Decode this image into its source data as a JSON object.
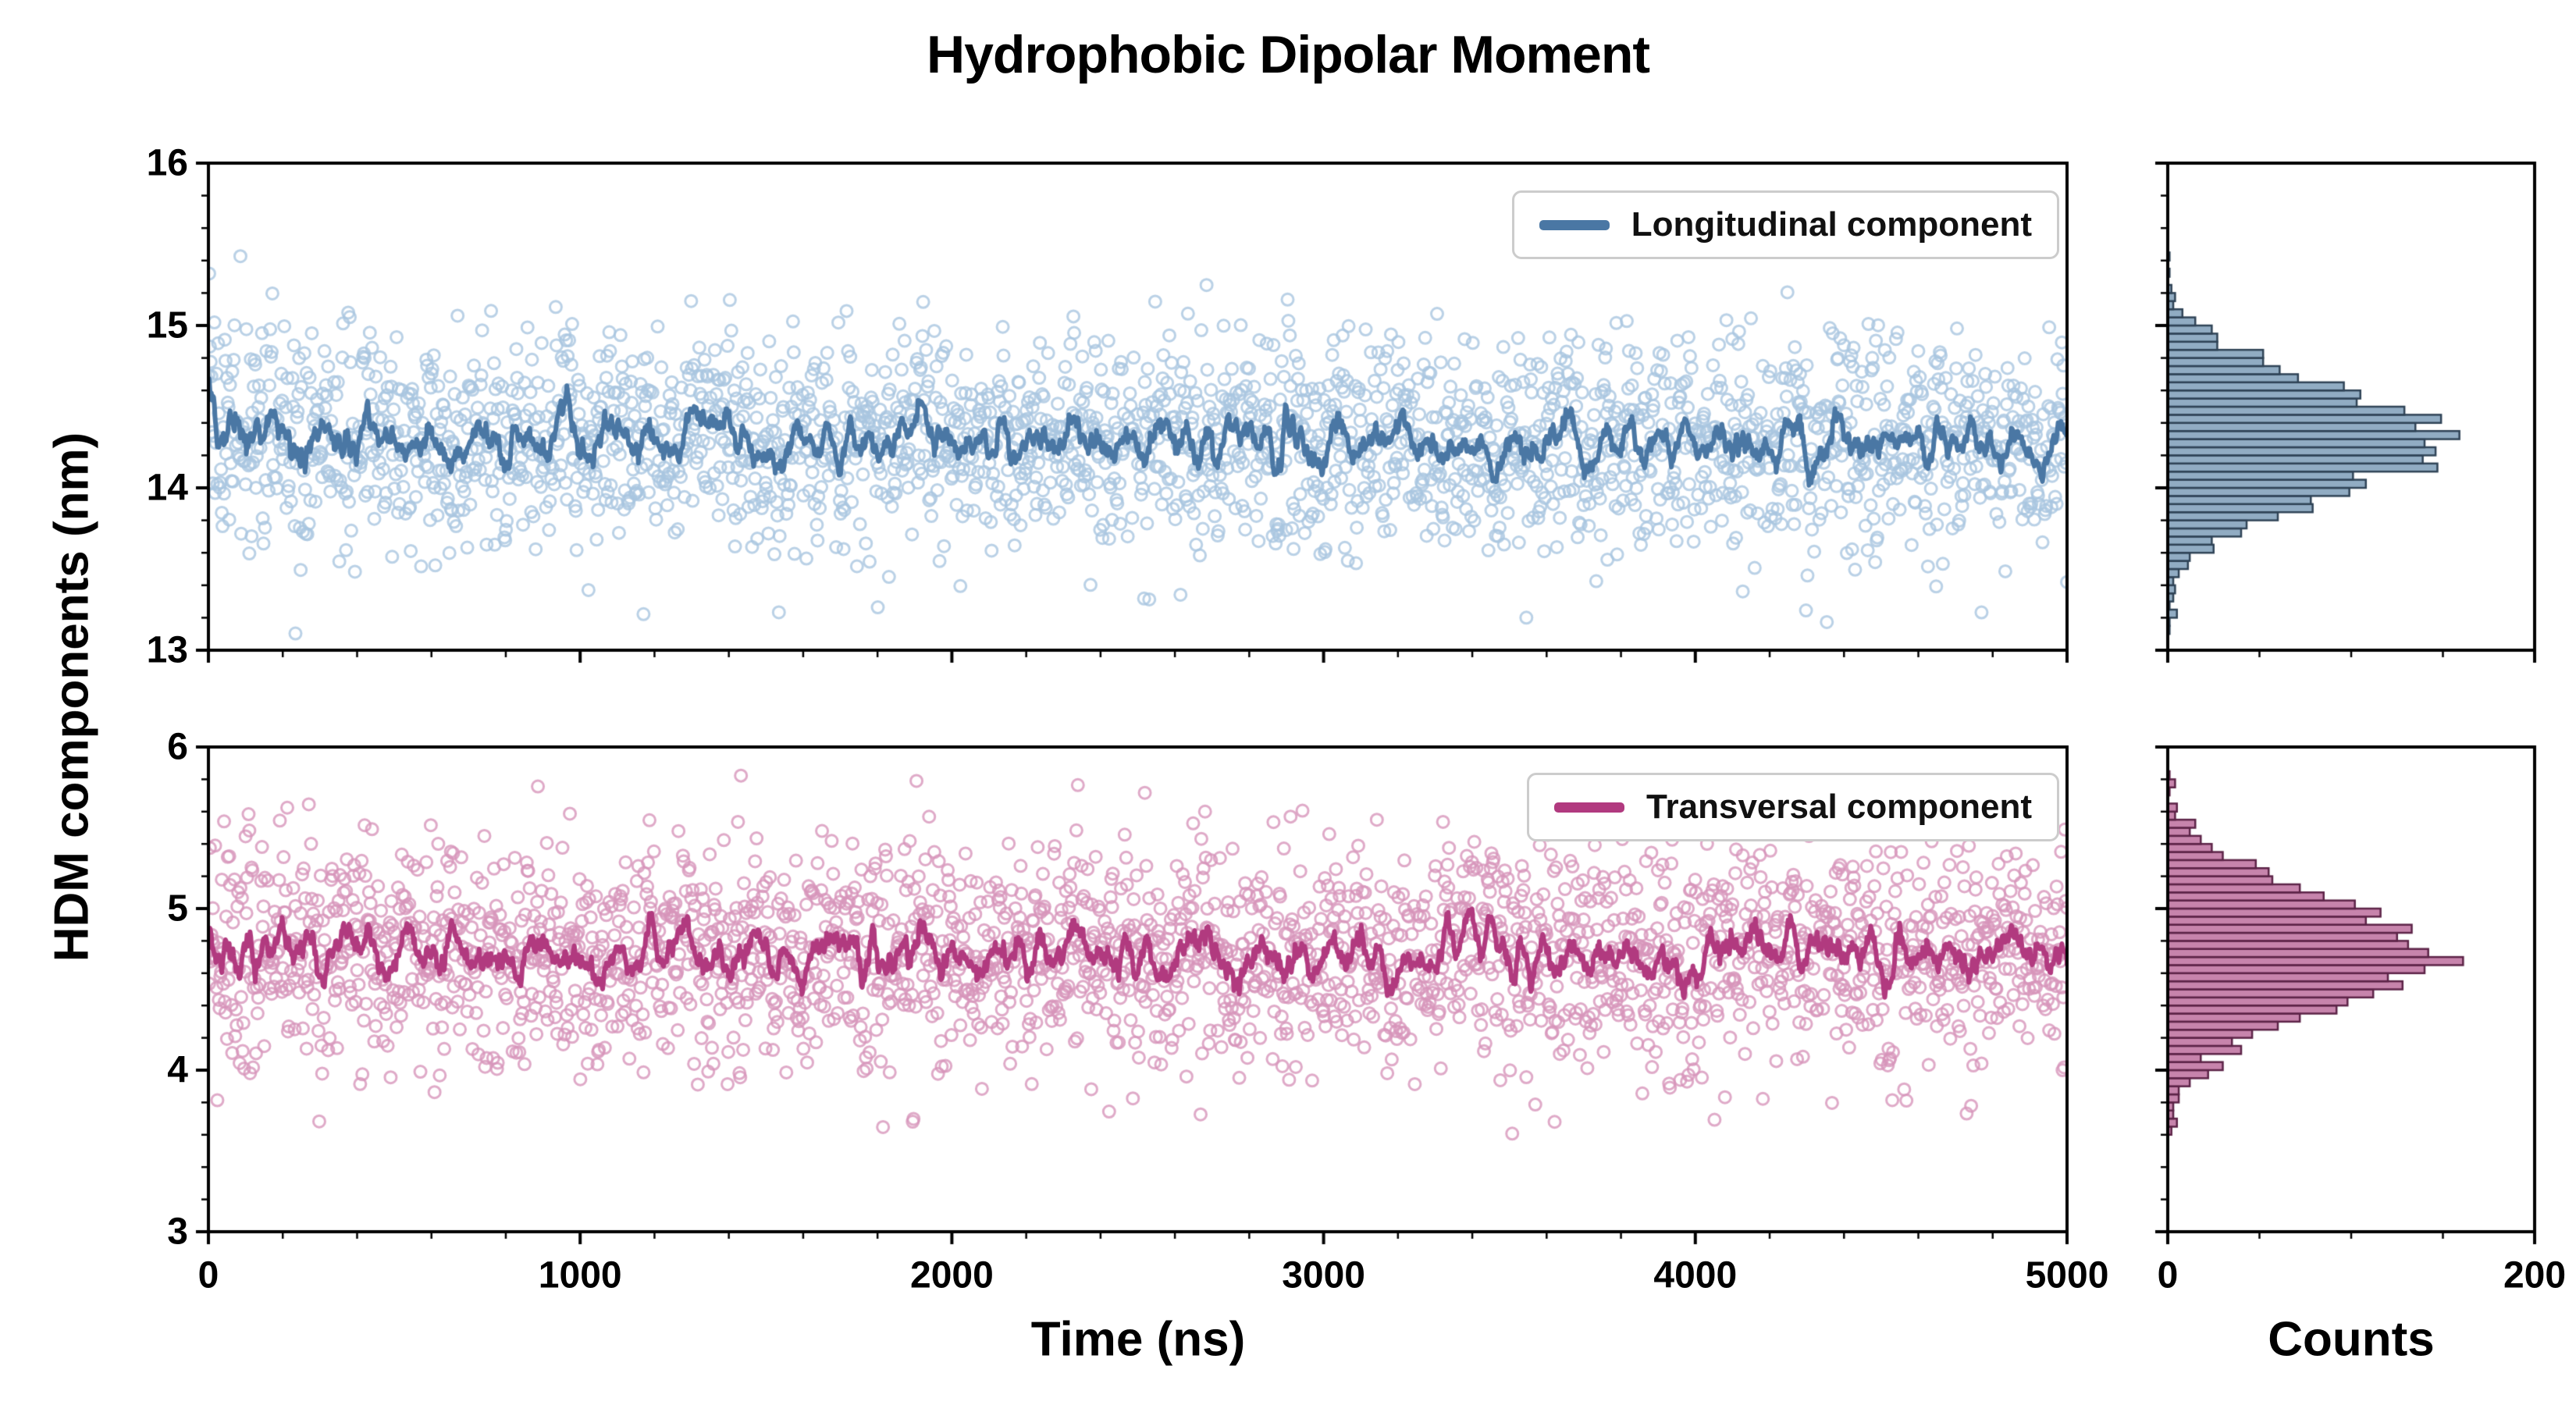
{
  "figure": {
    "title": "Hydrophobic Dipolar Moment",
    "ylabel": "HDM components (nm)",
    "xlabel": "Time (ns)",
    "counts_xlabel": "Counts"
  },
  "chart_data": [
    {
      "type": "scatter",
      "name": "Longitudinal component",
      "x_range": [
        0,
        5000
      ],
      "y_range": [
        13,
        16
      ],
      "x_ticks": [
        0,
        1000,
        2000,
        3000,
        4000,
        5000
      ],
      "x_minor_step": 200,
      "y_ticks": [
        13,
        14,
        15,
        16
      ],
      "y_minor_step": 0.2,
      "n_points": 2500,
      "mean": 14.3,
      "std": 0.33,
      "running_mean_window": 15,
      "line_color": "#4a77a4",
      "marker_color": "#a9c6e0",
      "legend_position": "upper right",
      "hist": {
        "type": "barh",
        "bin_width": 0.05,
        "x_range": [
          0,
          200
        ],
        "x_ticks": [
          0,
          200
        ],
        "x_minor_step": 50,
        "peak_count_approx": 150,
        "peak_value_approx": 14.3,
        "fill": "#7e9db9",
        "edge": "#2f4356"
      }
    },
    {
      "type": "scatter",
      "name": "Transversal component",
      "x_range": [
        0,
        5000
      ],
      "y_range": [
        3,
        6
      ],
      "x_ticks": [
        0,
        1000,
        2000,
        3000,
        4000,
        5000
      ],
      "x_minor_step": 200,
      "y_ticks": [
        3,
        4,
        5,
        6
      ],
      "y_minor_step": 0.2,
      "n_points": 2500,
      "mean": 4.72,
      "std": 0.34,
      "running_mean_window": 15,
      "line_color": "#b13a7f",
      "marker_color": "#d795ba",
      "legend_position": "upper right",
      "hist": {
        "type": "barh",
        "bin_width": 0.05,
        "x_range": [
          0,
          200
        ],
        "x_ticks": [
          0,
          200
        ],
        "x_minor_step": 50,
        "peak_count_approx": 160,
        "peak_value_approx": 4.7,
        "fill": "#bd6f9e",
        "edge": "#5c2347"
      }
    }
  ]
}
